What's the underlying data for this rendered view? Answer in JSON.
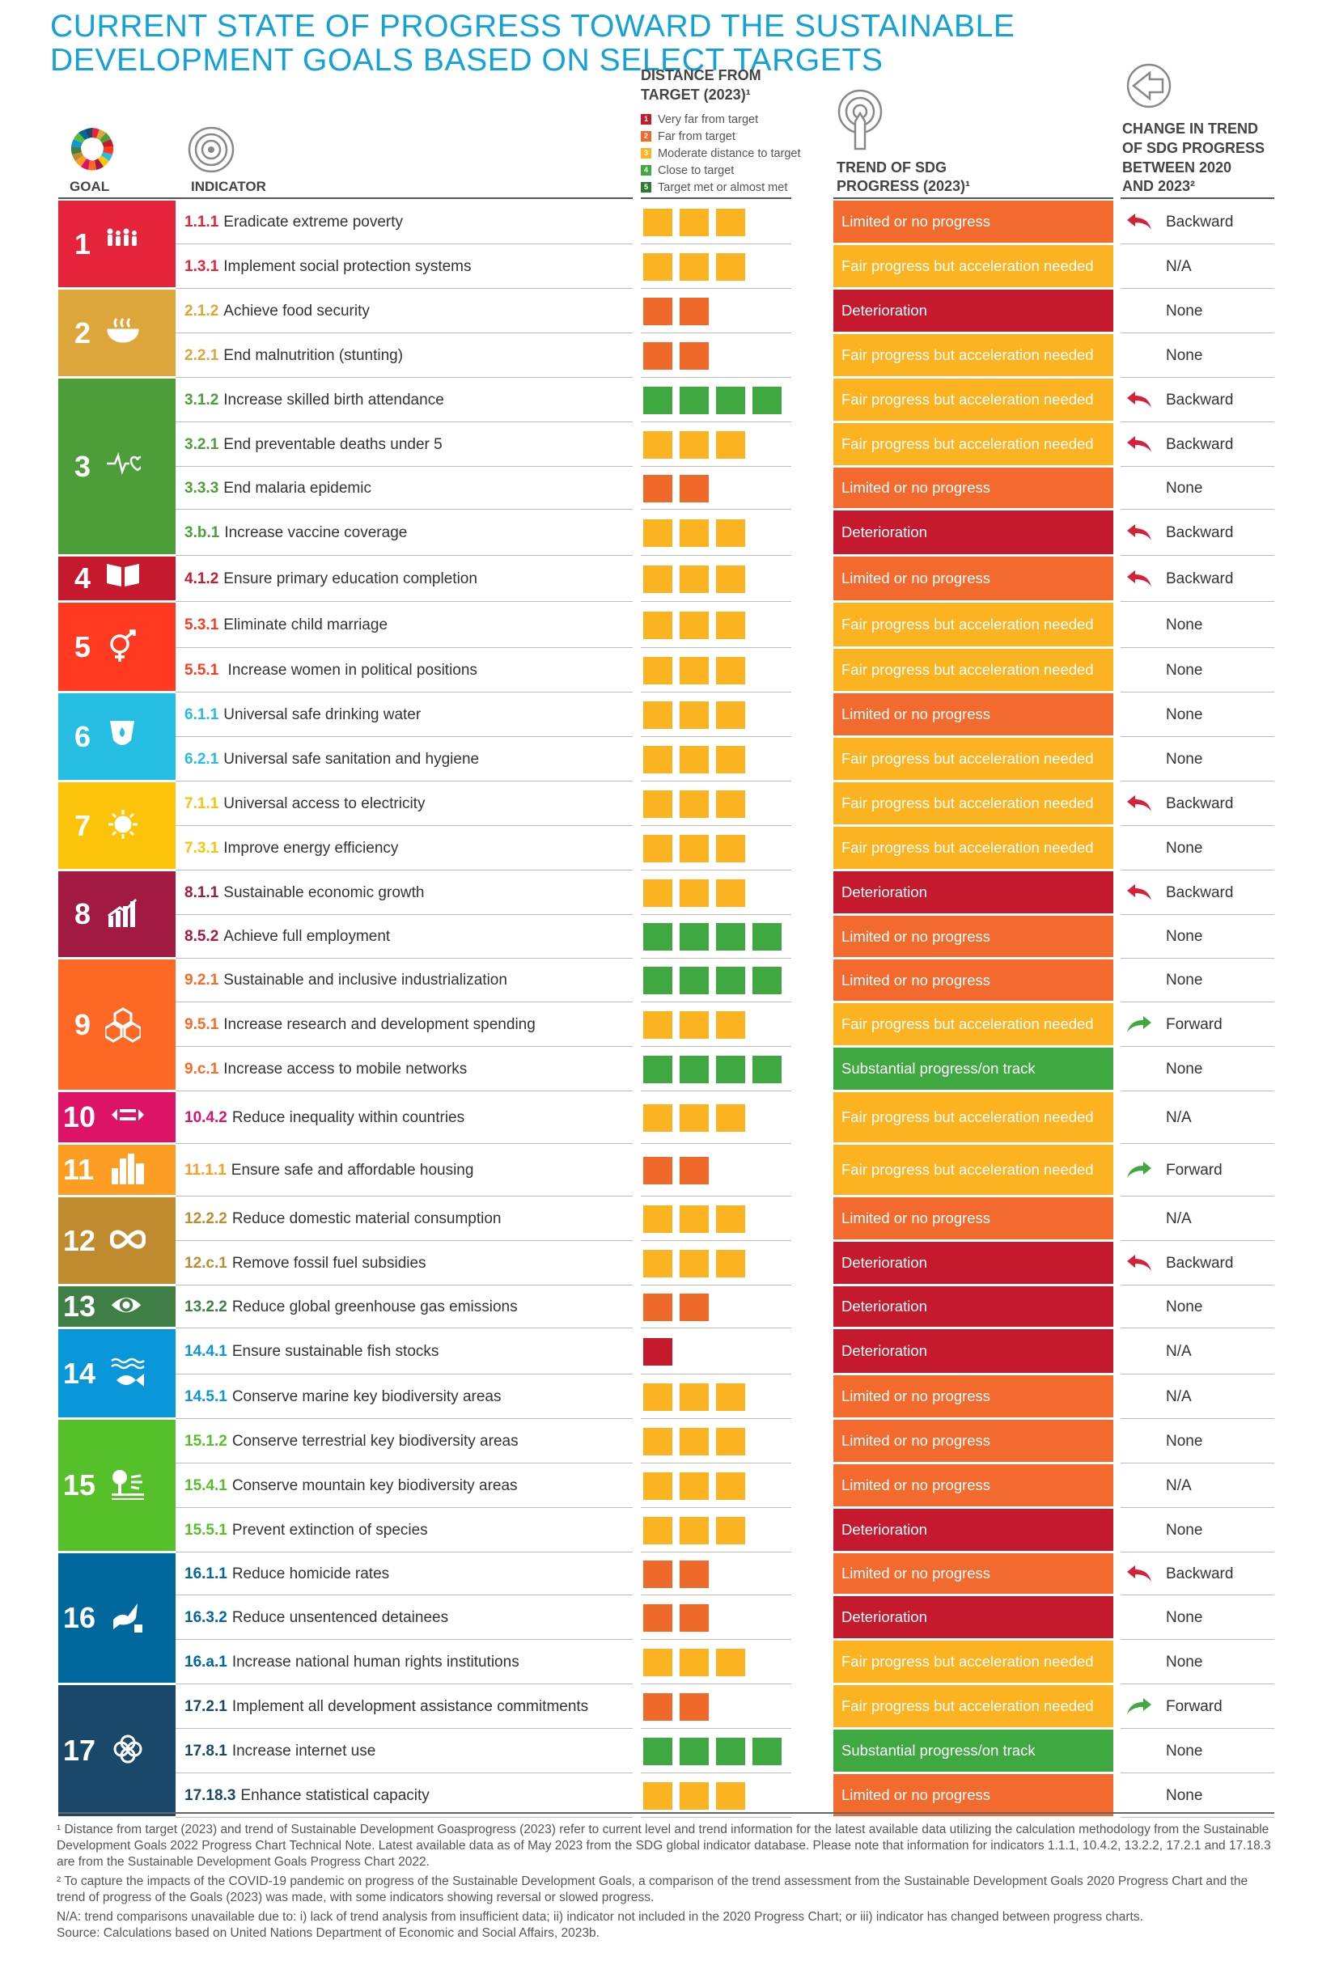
{
  "title": "CURRENT STATE OF PROGRESS TOWARD THE SUSTAINABLE DEVELOPMENT GOALS BASED ON SELECT TARGETS",
  "headers": {
    "goal": "GOAL",
    "indicator": "INDICATOR",
    "distance_l1": "DISTANCE FROM",
    "distance_l2": "TARGET (2023)¹",
    "trend_l1": "TREND OF SDG",
    "trend_l2": "PROGRESS (2023)¹",
    "change_l1": "CHANGE IN TREND",
    "change_l2": "OF SDG PROGRESS",
    "change_l3": "BETWEEN 2020",
    "change_l4": "AND 2023²"
  },
  "legend": [
    {
      "num": "1",
      "label": "Very far from target",
      "color": "#c5192d"
    },
    {
      "num": "2",
      "label": "Far from target",
      "color": "#ef6a2a"
    },
    {
      "num": "3",
      "label": "Moderate distance to target",
      "color": "#fcb322"
    },
    {
      "num": "4",
      "label": "Close to target",
      "color": "#3fa840"
    },
    {
      "num": "5",
      "label": "Target met or almost met",
      "color": "#2d7a32"
    }
  ],
  "colors": {
    "very_far": "#c5192d",
    "far": "#ef6a2a",
    "moderate": "#fcb322",
    "close": "#3fa840",
    "limited": "#f26a2e",
    "fair": "#fcb322",
    "deterioration": "#c5192d",
    "substantial": "#3fa840",
    "backward_arrow": "#d6213a",
    "forward_arrow": "#3fa840"
  },
  "goals": [
    {
      "num": "1",
      "color": "#e5243b",
      "icon": "family-icon"
    },
    {
      "num": "2",
      "color": "#dda63a",
      "icon": "food-bowl-icon"
    },
    {
      "num": "3",
      "color": "#4c9f38",
      "icon": "heartbeat-icon"
    },
    {
      "num": "4",
      "color": "#c5192d",
      "icon": "book-icon"
    },
    {
      "num": "5",
      "color": "#ff3a21",
      "icon": "gender-icon"
    },
    {
      "num": "6",
      "color": "#26bde2",
      "icon": "water-drop-icon"
    },
    {
      "num": "7",
      "color": "#fcc30b",
      "icon": "sun-icon"
    },
    {
      "num": "8",
      "color": "#a21942",
      "icon": "growth-chart-icon"
    },
    {
      "num": "9",
      "color": "#fd6925",
      "icon": "cubes-icon"
    },
    {
      "num": "10",
      "color": "#dd1367",
      "icon": "equality-icon"
    },
    {
      "num": "11",
      "color": "#fd9d24",
      "icon": "city-icon"
    },
    {
      "num": "12",
      "color": "#bf8b2e",
      "icon": "infinity-icon"
    },
    {
      "num": "13",
      "color": "#3f7e44",
      "icon": "eye-earth-icon"
    },
    {
      "num": "14",
      "color": "#0a97d9",
      "icon": "fish-icon"
    },
    {
      "num": "15",
      "color": "#56c02b",
      "icon": "tree-icon"
    },
    {
      "num": "16",
      "color": "#00689d",
      "icon": "dove-icon"
    },
    {
      "num": "17",
      "color": "#19486a",
      "icon": "flower-icon"
    }
  ],
  "rows": [
    {
      "code": "1.1.1",
      "text": "Eradicate extreme poverty",
      "dist": 3,
      "trend": "Limited or no progress",
      "change": "Backward"
    },
    {
      "code": "1.3.1",
      "text": "Implement social protection systems",
      "dist": 3,
      "trend": "Fair progress but acceleration needed",
      "change": "N/A"
    },
    {
      "code": "2.1.2",
      "text": "Achieve food security",
      "dist": 2,
      "trend": "Deterioration",
      "change": "None"
    },
    {
      "code": "2.2.1",
      "text": "End malnutrition (stunting)",
      "dist": 2,
      "trend": "Fair progress but acceleration needed",
      "change": "None"
    },
    {
      "code": "3.1.2",
      "text": "Increase skilled birth attendance",
      "dist": 4,
      "trend": "Fair progress but acceleration needed",
      "change": "Backward"
    },
    {
      "code": "3.2.1",
      "text": "End preventable deaths under 5",
      "dist": 3,
      "trend": "Fair progress but acceleration needed",
      "change": "Backward"
    },
    {
      "code": "3.3.3",
      "text": "End malaria epidemic",
      "dist": 2,
      "trend": "Limited or no progress",
      "change": "None"
    },
    {
      "code": "3.b.1",
      "text": "Increase vaccine coverage",
      "dist": 3,
      "trend": "Deterioration",
      "change": "Backward"
    },
    {
      "code": "4.1.2",
      "text": "Ensure primary education completion",
      "dist": 3,
      "trend": "Limited or no progress",
      "change": "Backward"
    },
    {
      "code": "5.3.1",
      "text": "Eliminate child marriage",
      "dist": 3,
      "trend": "Fair progress but acceleration needed",
      "change": "None"
    },
    {
      "code": "5.5.1",
      "text": " Increase women in political positions",
      "dist": 3,
      "trend": "Fair progress but acceleration needed",
      "change": "None"
    },
    {
      "code": "6.1.1",
      "text": "Universal safe drinking water",
      "dist": 3,
      "trend": "Limited or no progress",
      "change": "None"
    },
    {
      "code": "6.2.1",
      "text": "Universal safe sanitation and hygiene",
      "dist": 3,
      "trend": "Fair progress but acceleration needed",
      "change": "None"
    },
    {
      "code": "7.1.1",
      "text": "Universal access to electricity",
      "dist": 3,
      "trend": "Fair progress but acceleration needed",
      "change": "Backward"
    },
    {
      "code": "7.3.1",
      "text": "Improve energy efficiency",
      "dist": 3,
      "trend": "Fair progress but acceleration needed",
      "change": "None"
    },
    {
      "code": "8.1.1",
      "text": "Sustainable economic growth",
      "dist": 3,
      "trend": "Deterioration",
      "change": "Backward"
    },
    {
      "code": "8.5.2",
      "text": "Achieve full employment",
      "dist": 4,
      "trend": "Limited or no progress",
      "change": "None"
    },
    {
      "code": "9.2.1",
      "text": "Sustainable and inclusive industrialization",
      "dist": 4,
      "trend": "Limited or no progress",
      "change": "None"
    },
    {
      "code": "9.5.1",
      "text": "Increase research and development spending",
      "dist": 3,
      "trend": "Fair progress but acceleration needed",
      "change": "Forward"
    },
    {
      "code": "9.c.1",
      "text": "Increase access to mobile networks",
      "dist": 4,
      "trend": "Substantial progress/on track",
      "change": "None"
    },
    {
      "code": "10.4.2",
      "text": "Reduce inequality within countries",
      "dist": 3,
      "trend": "Fair progress but acceleration needed",
      "change": "N/A"
    },
    {
      "code": "11.1.1",
      "text": "Ensure safe and affordable housing",
      "dist": 2,
      "trend": "Fair progress but acceleration needed",
      "change": "Forward"
    },
    {
      "code": "12.2.2",
      "text": "Reduce domestic material consumption",
      "dist": 3,
      "trend": "Limited or no progress",
      "change": "N/A"
    },
    {
      "code": "12.c.1",
      "text": "Remove fossil fuel subsidies",
      "dist": 3,
      "trend": "Deterioration",
      "change": "Backward"
    },
    {
      "code": "13.2.2",
      "text": "Reduce global greenhouse gas emissions",
      "dist": 2,
      "trend": "Deterioration",
      "change": "None"
    },
    {
      "code": "14.4.1",
      "text": "Ensure sustainable fish stocks",
      "dist": 1,
      "trend": "Deterioration",
      "change": "N/A"
    },
    {
      "code": "14.5.1",
      "text": "Conserve marine key biodiversity areas",
      "dist": 3,
      "trend": "Limited or no progress",
      "change": "N/A"
    },
    {
      "code": "15.1.2",
      "text": "Conserve terrestrial key biodiversity areas",
      "dist": 3,
      "trend": "Limited or no progress",
      "change": "None"
    },
    {
      "code": "15.4.1",
      "text": "Conserve mountain key biodiversity areas",
      "dist": 3,
      "trend": "Limited or no progress",
      "change": "N/A"
    },
    {
      "code": "15.5.1",
      "text": "Prevent extinction of species",
      "dist": 3,
      "trend": "Deterioration",
      "change": "None"
    },
    {
      "code": "16.1.1",
      "text": "Reduce homicide rates",
      "dist": 2,
      "trend": "Limited or no progress",
      "change": "Backward"
    },
    {
      "code": "16.3.2",
      "text": "Reduce unsentenced detainees",
      "dist": 2,
      "trend": "Deterioration",
      "change": "None"
    },
    {
      "code": "16.a.1",
      "text": "Increase national human rights institutions",
      "dist": 3,
      "trend": "Fair progress but acceleration needed",
      "change": "None"
    },
    {
      "code": "17.2.1",
      "text": "Implement all development assistance commitments",
      "dist": 2,
      "trend": "Fair progress but acceleration needed",
      "change": "Forward"
    },
    {
      "code": "17.8.1",
      "text": "Increase internet use",
      "dist": 4,
      "trend": "Substantial progress/on track",
      "change": "None"
    },
    {
      "code": "17.18.3",
      "text": "Enhance statistical capacity",
      "dist": 3,
      "trend": "Limited or no progress",
      "change": "None"
    }
  ],
  "notes": [
    "¹ Distance from target (2023) and trend of Sustainable Development Goasprogress (2023) refer to current level and trend information for the latest available data utilizing the calculation methodology from the Sustainable Development Goals 2022 Progress Chart Technical Note. Latest available data as of May 2023 from the SDG global indicator database. Please note that information for indicators 1.1.1, 10.4.2, 13.2.2, 17.2.1 and 17.18.3 are from the Sustainable Development Goals Progress Chart 2022.",
    "² To capture the impacts of the COVID-19 pandemic on progress of the Sustainable Development Goals, a comparison of the trend assessment from the Sustainable Development Goals 2020 Progress Chart and the trend of progress of the Goals (2023) was made, with some indicators showing reversal or slowed progress.",
    "N/A: trend comparisons unavailable due to: i) lack of trend analysis from insufficient data; ii) indicator not included in the 2020 Progress Chart; or iii) indicator has changed between progress charts.",
    "Source: Calculations based on United Nations Department of Economic and Social Affairs, 2023b."
  ]
}
